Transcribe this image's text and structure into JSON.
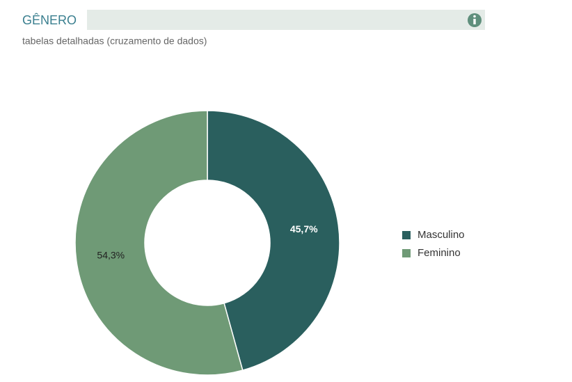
{
  "chart_data": {
    "type": "pie",
    "donut": true,
    "title": "GÊNERO",
    "subtitle": "tabelas detalhadas (cruzamento de dados)",
    "categories": [
      "Masculino",
      "Feminino"
    ],
    "values": [
      45.7,
      54.3
    ],
    "value_labels": [
      "45,7%",
      "54,3%"
    ],
    "colors": [
      "#2a5f5e",
      "#6f9a76"
    ],
    "legend": "right"
  }
}
